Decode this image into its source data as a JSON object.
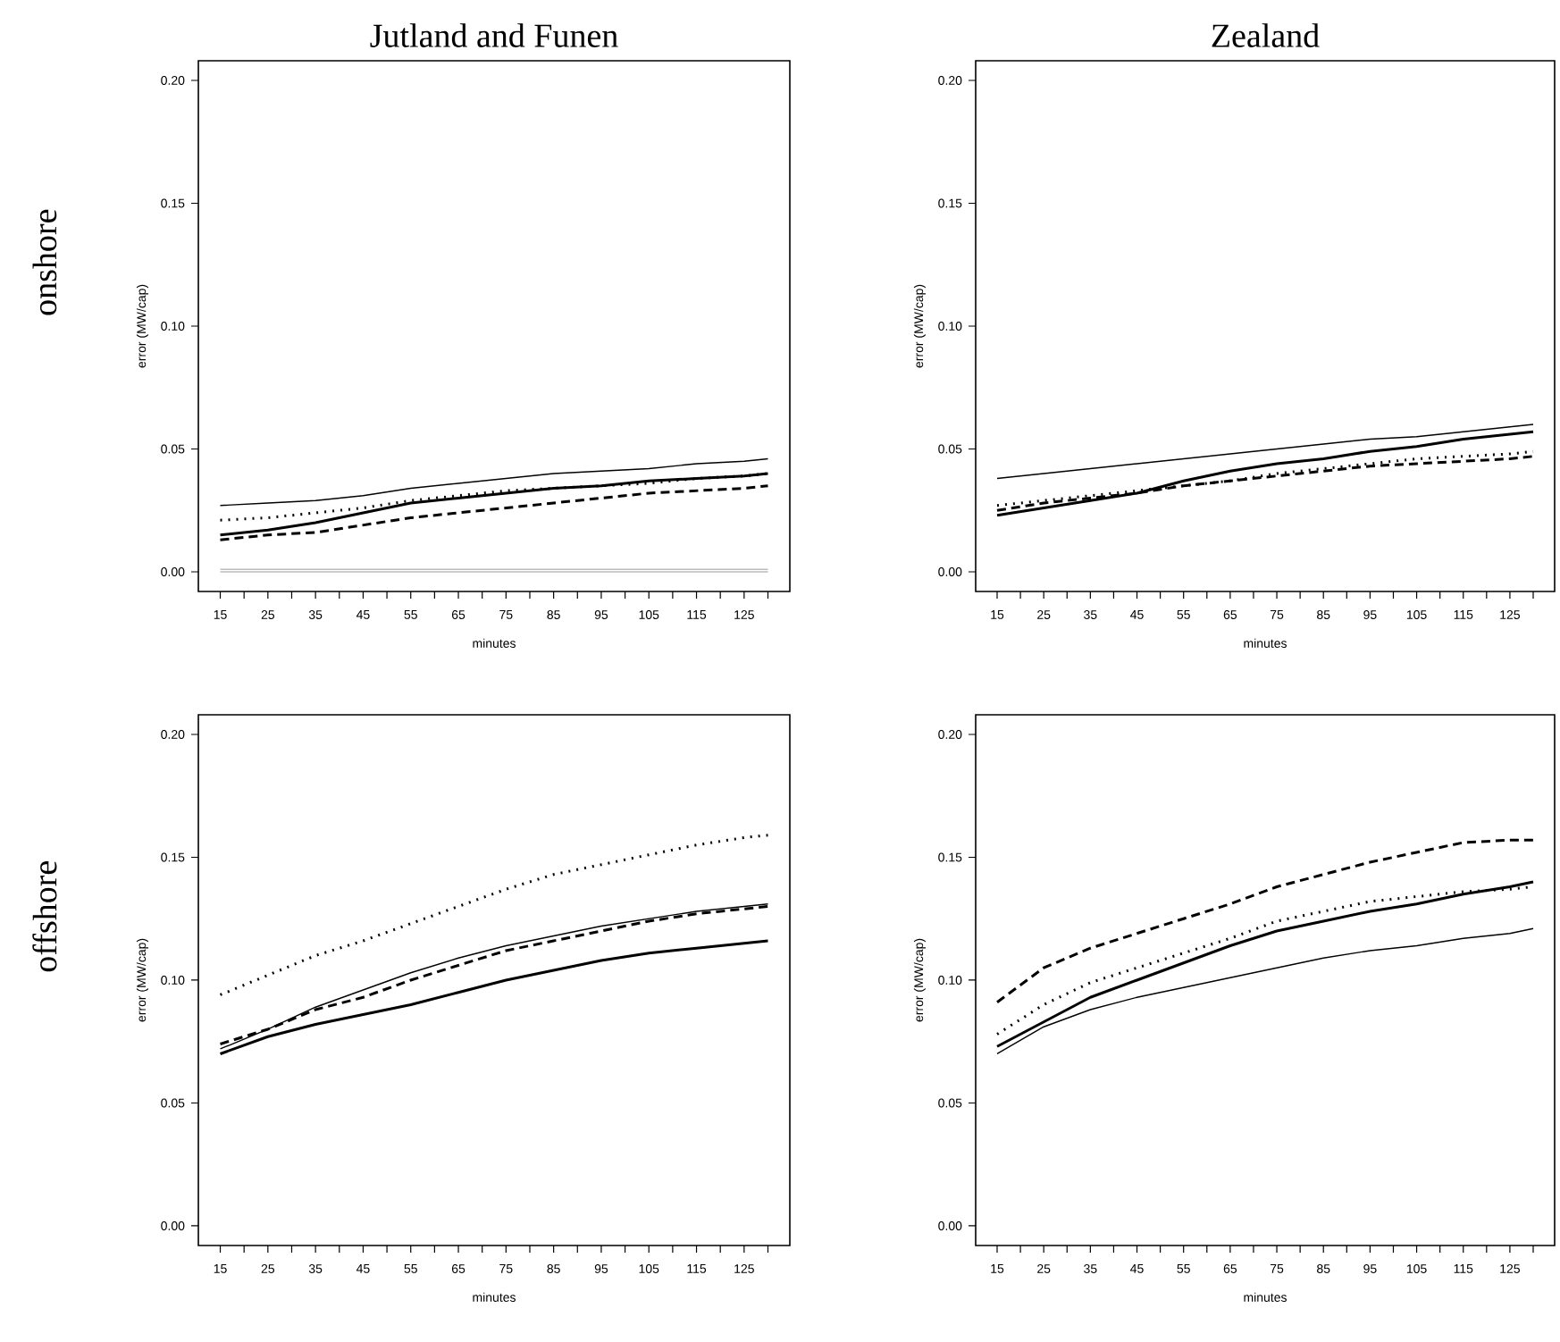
{
  "chart_data": [
    {
      "type": "line",
      "title": "Jutland and Funen",
      "xlabel": "minutes",
      "ylabel": "error (MW/cap)",
      "annotations": [
        "onshore"
      ],
      "x": [
        15,
        25,
        35,
        45,
        55,
        65,
        75,
        85,
        95,
        105,
        115,
        125,
        130
      ],
      "xlim": [
        10.4,
        134.6
      ],
      "xticks": [
        15,
        {
          "value": 20,
          "label": null
        },
        25,
        {
          "value": 30,
          "label": null
        },
        35,
        {
          "value": 40,
          "label": null
        },
        45,
        {
          "value": 50,
          "label": null
        },
        55,
        {
          "value": 60,
          "label": null
        },
        65,
        {
          "value": 70,
          "label": null
        },
        75,
        {
          "value": 80,
          "label": null
        },
        85,
        {
          "value": 90,
          "label": null
        },
        95,
        {
          "value": 100,
          "label": null
        },
        105,
        {
          "value": 110,
          "label": null
        },
        115,
        {
          "value": 120,
          "label": null
        },
        125,
        {
          "value": 130,
          "label": null
        }
      ],
      "ylim": [
        -0.008,
        0.208
      ],
      "yticks": [
        {
          "value": 0,
          "label": "0.00"
        },
        {
          "value": 0.05,
          "label": "0.05"
        },
        {
          "value": 0.1,
          "label": "0.10"
        },
        {
          "value": 0.15,
          "label": "0.15"
        },
        {
          "value": 0.2,
          "label": "0.20"
        }
      ],
      "series": [
        {
          "color": "#000000",
          "line_style": "solid",
          "values": [
            0.027,
            0.028,
            0.029,
            0.031,
            0.034,
            0.036,
            0.038,
            0.04,
            0.041,
            0.042,
            0.044,
            0.045,
            0.046
          ]
        },
        {
          "color": "#000000",
          "line_style": "solid",
          "values": [
            0.015,
            0.017,
            0.02,
            0.024,
            0.028,
            0.03,
            0.032,
            0.034,
            0.035,
            0.037,
            0.038,
            0.039,
            0.04
          ]
        },
        {
          "color": "#000000",
          "line_style": "dotted",
          "values": [
            0.021,
            0.022,
            0.024,
            0.026,
            0.029,
            0.031,
            0.033,
            0.034,
            0.035,
            0.036,
            0.038,
            0.039,
            0.04
          ]
        },
        {
          "color": "#000000",
          "line_style": "dashed",
          "values": [
            0.013,
            0.015,
            0.016,
            0.019,
            0.022,
            0.024,
            0.026,
            0.028,
            0.03,
            0.032,
            0.033,
            0.034,
            0.035
          ]
        },
        {
          "color": "#bbbbbb",
          "line_style": "solid",
          "values": [
            0.001,
            0.001,
            0.001,
            0.001,
            0.001,
            0.001,
            0.001,
            0.001,
            0.001,
            0.001,
            0.001,
            0.001,
            0.001
          ]
        },
        {
          "color": "#bbbbbb",
          "line_style": "solid",
          "values": [
            0.0,
            0.0,
            0.0,
            0.0,
            0.0,
            0.0,
            0.0,
            0.0,
            0.0,
            0.0,
            0.0,
            0.0,
            0.0
          ]
        }
      ]
    },
    {
      "type": "line",
      "title": "Zealand",
      "xlabel": "minutes",
      "ylabel": "error (MW/cap)",
      "x": [
        15,
        25,
        35,
        45,
        55,
        65,
        75,
        85,
        95,
        105,
        115,
        125,
        130
      ],
      "xlim": [
        10.4,
        134.6
      ],
      "xticks": [
        15,
        {
          "value": 20,
          "label": null
        },
        25,
        {
          "value": 30,
          "label": null
        },
        35,
        {
          "value": 40,
          "label": null
        },
        45,
        {
          "value": 50,
          "label": null
        },
        55,
        {
          "value": 60,
          "label": null
        },
        65,
        {
          "value": 70,
          "label": null
        },
        75,
        {
          "value": 80,
          "label": null
        },
        85,
        {
          "value": 90,
          "label": null
        },
        95,
        {
          "value": 100,
          "label": null
        },
        105,
        {
          "value": 110,
          "label": null
        },
        115,
        {
          "value": 120,
          "label": null
        },
        125,
        {
          "value": 130,
          "label": null
        }
      ],
      "ylim": [
        -0.008,
        0.208
      ],
      "yticks": [
        {
          "value": 0,
          "label": "0.00"
        },
        {
          "value": 0.05,
          "label": "0.05"
        },
        {
          "value": 0.1,
          "label": "0.10"
        },
        {
          "value": 0.15,
          "label": "0.15"
        },
        {
          "value": 0.2,
          "label": "0.20"
        }
      ],
      "series": [
        {
          "color": "#000000",
          "line_style": "solid",
          "values": [
            0.038,
            0.04,
            0.042,
            0.044,
            0.046,
            0.048,
            0.05,
            0.052,
            0.054,
            0.055,
            0.057,
            0.059,
            0.06
          ]
        },
        {
          "color": "#000000",
          "line_style": "solid",
          "values": [
            0.023,
            0.026,
            0.029,
            0.032,
            0.037,
            0.041,
            0.044,
            0.046,
            0.049,
            0.051,
            0.054,
            0.056,
            0.057
          ]
        },
        {
          "color": "#000000",
          "line_style": "dotted",
          "values": [
            0.027,
            0.029,
            0.031,
            0.033,
            0.035,
            0.037,
            0.04,
            0.042,
            0.044,
            0.046,
            0.047,
            0.048,
            0.049
          ]
        },
        {
          "color": "#000000",
          "line_style": "dashed",
          "values": [
            0.025,
            0.028,
            0.03,
            0.032,
            0.035,
            0.037,
            0.039,
            0.041,
            0.043,
            0.044,
            0.045,
            0.046,
            0.047
          ]
        }
      ]
    },
    {
      "type": "line",
      "xlabel": "minutes",
      "ylabel": "error (MW/cap)",
      "annotations": [
        "offshore"
      ],
      "x": [
        15,
        25,
        35,
        45,
        55,
        65,
        75,
        85,
        95,
        105,
        115,
        125,
        130
      ],
      "xlim": [
        10.4,
        134.6
      ],
      "xticks": [
        15,
        {
          "value": 20,
          "label": null
        },
        25,
        {
          "value": 30,
          "label": null
        },
        35,
        {
          "value": 40,
          "label": null
        },
        45,
        {
          "value": 50,
          "label": null
        },
        55,
        {
          "value": 60,
          "label": null
        },
        65,
        {
          "value": 70,
          "label": null
        },
        75,
        {
          "value": 80,
          "label": null
        },
        85,
        {
          "value": 90,
          "label": null
        },
        95,
        {
          "value": 100,
          "label": null
        },
        105,
        {
          "value": 110,
          "label": null
        },
        115,
        {
          "value": 120,
          "label": null
        },
        125,
        {
          "value": 130,
          "label": null
        }
      ],
      "ylim": [
        -0.008,
        0.208
      ],
      "yticks": [
        {
          "value": 0,
          "label": "0.00"
        },
        {
          "value": 0.05,
          "label": "0.05"
        },
        {
          "value": 0.1,
          "label": "0.10"
        },
        {
          "value": 0.15,
          "label": "0.15"
        },
        {
          "value": 0.2,
          "label": "0.20"
        }
      ],
      "series": [
        {
          "color": "#000000",
          "line_style": "solid",
          "values": [
            0.072,
            0.08,
            0.089,
            0.096,
            0.103,
            0.109,
            0.114,
            0.118,
            0.122,
            0.125,
            0.128,
            0.13,
            0.131
          ]
        },
        {
          "color": "#000000",
          "line_style": "solid",
          "values": [
            0.07,
            0.077,
            0.082,
            0.086,
            0.09,
            0.095,
            0.1,
            0.104,
            0.108,
            0.111,
            0.113,
            0.115,
            0.116
          ]
        },
        {
          "color": "#000000",
          "line_style": "dotted",
          "values": [
            0.094,
            0.102,
            0.11,
            0.116,
            0.123,
            0.13,
            0.137,
            0.143,
            0.147,
            0.151,
            0.155,
            0.158,
            0.159
          ]
        },
        {
          "color": "#000000",
          "line_style": "dashed",
          "values": [
            0.074,
            0.08,
            0.088,
            0.093,
            0.1,
            0.106,
            0.112,
            0.116,
            0.12,
            0.124,
            0.127,
            0.129,
            0.13
          ]
        }
      ]
    },
    {
      "type": "line",
      "xlabel": "minutes",
      "ylabel": "error (MW/cap)",
      "x": [
        15,
        25,
        35,
        45,
        55,
        65,
        75,
        85,
        95,
        105,
        115,
        125,
        130
      ],
      "xlim": [
        10.4,
        134.6
      ],
      "xticks": [
        15,
        {
          "value": 20,
          "label": null
        },
        25,
        {
          "value": 30,
          "label": null
        },
        35,
        {
          "value": 40,
          "label": null
        },
        45,
        {
          "value": 50,
          "label": null
        },
        55,
        {
          "value": 60,
          "label": null
        },
        65,
        {
          "value": 70,
          "label": null
        },
        75,
        {
          "value": 80,
          "label": null
        },
        85,
        {
          "value": 90,
          "label": null
        },
        95,
        {
          "value": 100,
          "label": null
        },
        105,
        {
          "value": 110,
          "label": null
        },
        115,
        {
          "value": 120,
          "label": null
        },
        125,
        {
          "value": 130,
          "label": null
        }
      ],
      "ylim": [
        -0.008,
        0.208
      ],
      "yticks": [
        {
          "value": 0,
          "label": "0.00"
        },
        {
          "value": 0.05,
          "label": "0.05"
        },
        {
          "value": 0.1,
          "label": "0.10"
        },
        {
          "value": 0.15,
          "label": "0.15"
        },
        {
          "value": 0.2,
          "label": "0.20"
        }
      ],
      "series": [
        {
          "color": "#000000",
          "line_style": "solid",
          "values": [
            0.07,
            0.081,
            0.088,
            0.093,
            0.097,
            0.101,
            0.105,
            0.109,
            0.112,
            0.114,
            0.117,
            0.119,
            0.121
          ]
        },
        {
          "color": "#000000",
          "line_style": "solid",
          "values": [
            0.073,
            0.083,
            0.093,
            0.1,
            0.107,
            0.114,
            0.12,
            0.124,
            0.128,
            0.131,
            0.135,
            0.138,
            0.14
          ]
        },
        {
          "color": "#000000",
          "line_style": "dotted",
          "values": [
            0.078,
            0.09,
            0.099,
            0.105,
            0.111,
            0.117,
            0.124,
            0.128,
            0.132,
            0.134,
            0.136,
            0.137,
            0.138
          ]
        },
        {
          "color": "#000000",
          "line_style": "dashed",
          "values": [
            0.091,
            0.105,
            0.113,
            0.119,
            0.125,
            0.131,
            0.138,
            0.143,
            0.148,
            0.152,
            0.156,
            0.157,
            0.157
          ]
        }
      ]
    }
  ]
}
